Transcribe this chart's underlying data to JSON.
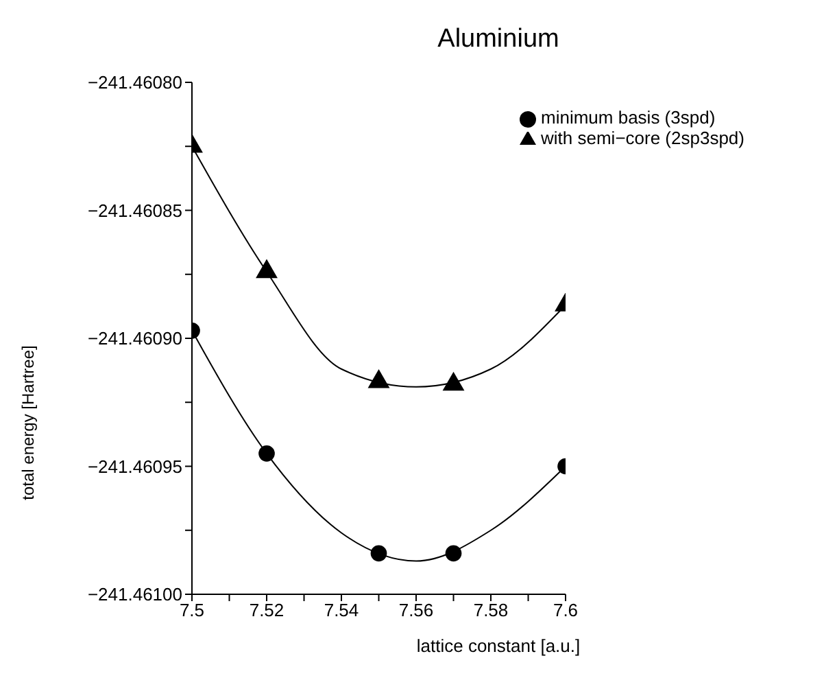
{
  "chart_data": {
    "type": "scatter",
    "title": "Aluminium",
    "xlabel": "lattice constant [a.u.]",
    "ylabel": "total energy [Hartree]",
    "x": [
      7.5,
      7.52,
      7.55,
      7.57,
      7.6
    ],
    "series": [
      {
        "name": "minimum basis (3spd)",
        "color": "#000000",
        "marker": "circle",
        "values": [
          -241.460897,
          -241.460945,
          -241.460984,
          -241.460984,
          -241.46095
        ]
      },
      {
        "name": "with semi−core (2sp3spd)",
        "color": "#000000",
        "marker": "triangle",
        "values": [
          -241.460825,
          -241.460874,
          -241.460917,
          -241.460918,
          -241.460887
        ]
      },
      {
        "type": "line",
        "color": "#000000",
        "marker": "none",
        "x": [
          7.5,
          7.52,
          7.54,
          7.56,
          7.58,
          7.6
        ],
        "values": [
          -241.460897,
          -241.460945,
          -241.460976,
          -241.460987,
          -241.460975,
          -241.46095
        ]
      },
      {
        "type": "line",
        "color": "#000000",
        "marker": "none",
        "x": [
          7.5,
          7.52,
          7.54,
          7.56,
          7.58,
          7.6
        ],
        "values": [
          -241.460825,
          -241.460874,
          -241.460912,
          -241.460919,
          -241.460912,
          -241.460887
        ]
      }
    ],
    "xlim": [
      7.5,
      7.6
    ],
    "xticks": [
      7.5,
      {
        "value": 7.51,
        "label": null
      },
      7.52,
      {
        "value": 7.53,
        "label": null
      },
      7.54,
      {
        "value": 7.55,
        "label": null
      },
      7.56,
      {
        "value": 7.57,
        "label": null
      },
      7.58,
      {
        "value": 7.59,
        "label": null
      },
      7.6
    ],
    "ylim": [
      -241.461,
      -241.4608
    ],
    "yticks": [
      {
        "value": -241.461,
        "label": "−241.46100"
      },
      {
        "value": -241.460975,
        "label": null
      },
      {
        "value": -241.46095,
        "label": "−241.46095"
      },
      {
        "value": -241.460925,
        "label": null
      },
      {
        "value": -241.4609,
        "label": "−241.46090"
      },
      {
        "value": -241.460875,
        "label": null
      },
      {
        "value": -241.46085,
        "label": "−241.46085"
      },
      {
        "value": -241.460825,
        "label": null
      },
      {
        "value": -241.4608,
        "label": "−241.46080"
      }
    ],
    "grid": false,
    "legend": "top right"
  }
}
